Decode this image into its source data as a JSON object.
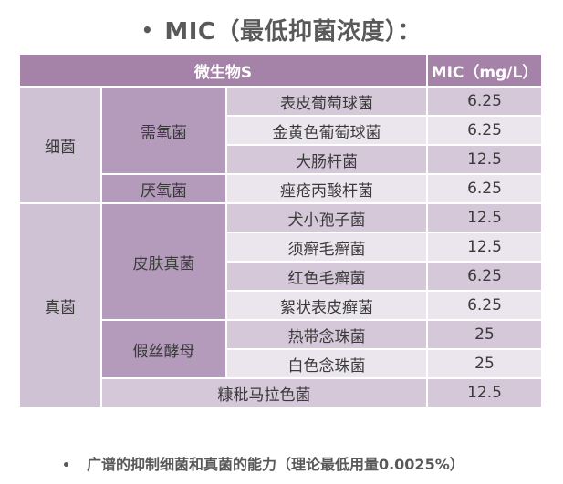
{
  "title": "MIC（最低抑菌浓度）：",
  "header": {
    "organism_label": "微生物S",
    "mic_label": "MIC（mg/L）"
  },
  "categories": [
    {
      "name": "细菌",
      "groups": [
        {
          "name": "需氧菌",
          "rows": [
            {
              "organism": "表皮葡萄球菌",
              "mic": "6.25"
            },
            {
              "organism": "金黄色葡萄球菌",
              "mic": "6.25"
            },
            {
              "organism": "大肠杆菌",
              "mic": "12.5"
            }
          ]
        },
        {
          "name": "厌氧菌",
          "rows": [
            {
              "organism": "痤疮丙酸杆菌",
              "mic": "6.25"
            }
          ]
        }
      ]
    },
    {
      "name": "真菌",
      "groups": [
        {
          "name": "皮肤真菌",
          "rows": [
            {
              "organism": "犬小孢子菌",
              "mic": "12.5"
            },
            {
              "organism": "须癣毛癣菌",
              "mic": "12.5"
            },
            {
              "organism": "红色毛癣菌",
              "mic": "6.25"
            },
            {
              "organism": "絮状表皮癣菌",
              "mic": "6.25"
            }
          ]
        },
        {
          "name": "假丝酵母",
          "rows": [
            {
              "organism": "热带念珠菌",
              "mic": "25"
            },
            {
              "organism": "白色念珠菌",
              "mic": "25"
            }
          ]
        }
      ],
      "extra_row": {
        "organism": "糠秕马拉色菌",
        "mic": "12.5"
      }
    }
  ],
  "footer": "广谱的抑制细菌和真菌的能力（理论最低用量0.0025%）"
}
